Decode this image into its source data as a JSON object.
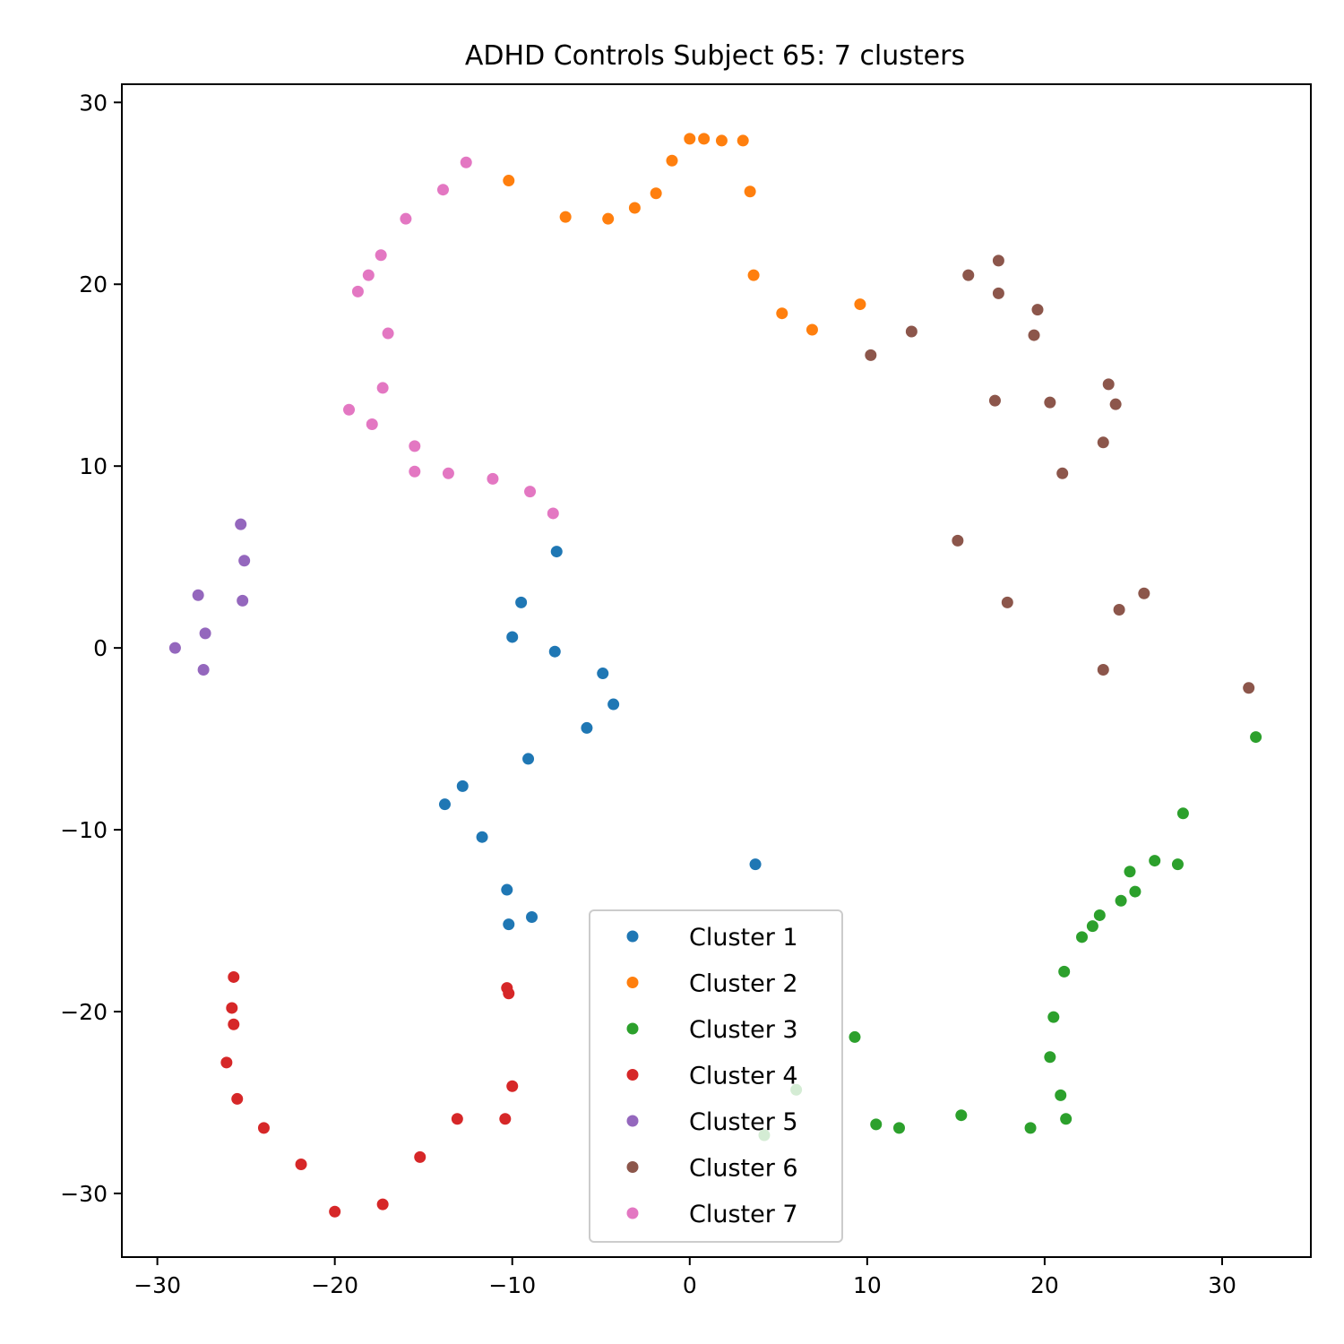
{
  "chart_data": {
    "type": "scatter",
    "title": "ADHD Controls Subject 65: 7 clusters",
    "xlabel": "",
    "ylabel": "",
    "xlim": [
      -32,
      35
    ],
    "ylim": [
      -33.5,
      31
    ],
    "xticks": [
      -30,
      -20,
      -10,
      0,
      10,
      20,
      30
    ],
    "yticks": [
      -30,
      -20,
      -10,
      0,
      10,
      20,
      30
    ],
    "xtick_labels": [
      "−30",
      "−20",
      "−10",
      "0",
      "10",
      "20",
      "30"
    ],
    "ytick_labels": [
      "−30",
      "−20",
      "−10",
      "0",
      "10",
      "20",
      "30"
    ],
    "grid": false,
    "legend_position": "lower center",
    "series": [
      {
        "name": "Cluster 1",
        "color": "#1f77b4",
        "points": [
          [
            -7.5,
            5.3
          ],
          [
            -9.5,
            2.5
          ],
          [
            -10,
            0.6
          ],
          [
            -7.6,
            -0.2
          ],
          [
            -4.9,
            -1.4
          ],
          [
            -4.3,
            -3.1
          ],
          [
            -5.8,
            -4.4
          ],
          [
            -9.1,
            -6.1
          ],
          [
            -12.8,
            -7.6
          ],
          [
            -13.8,
            -8.6
          ],
          [
            -11.7,
            -10.4
          ],
          [
            3.7,
            -11.9
          ],
          [
            -10.3,
            -13.3
          ],
          [
            -10.2,
            -15.2
          ],
          [
            -8.9,
            -14.8
          ]
        ]
      },
      {
        "name": "Cluster 2",
        "color": "#ff7f0e",
        "points": [
          [
            -10.2,
            25.7
          ],
          [
            -7,
            23.7
          ],
          [
            -4.6,
            23.6
          ],
          [
            -3.1,
            24.2
          ],
          [
            -1.9,
            25
          ],
          [
            -1,
            26.8
          ],
          [
            0,
            28
          ],
          [
            0.8,
            28
          ],
          [
            1.8,
            27.9
          ],
          [
            3,
            27.9
          ],
          [
            3.4,
            25.1
          ],
          [
            3.6,
            20.5
          ],
          [
            5.2,
            18.4
          ],
          [
            6.9,
            17.5
          ],
          [
            9.6,
            18.9
          ]
        ]
      },
      {
        "name": "Cluster 3",
        "color": "#2ca02c",
        "points": [
          [
            31.9,
            -4.9
          ],
          [
            27.8,
            -9.1
          ],
          [
            26.2,
            -11.7
          ],
          [
            27.5,
            -11.9
          ],
          [
            24.8,
            -12.3
          ],
          [
            25.1,
            -13.4
          ],
          [
            24.3,
            -13.9
          ],
          [
            23.1,
            -14.7
          ],
          [
            22.7,
            -15.3
          ],
          [
            22.1,
            -15.9
          ],
          [
            21.1,
            -17.8
          ],
          [
            20.5,
            -20.3
          ],
          [
            9.3,
            -21.4
          ],
          [
            20.3,
            -22.5
          ],
          [
            20.9,
            -24.6
          ],
          [
            21.2,
            -25.9
          ],
          [
            19.2,
            -26.4
          ],
          [
            15.3,
            -25.7
          ],
          [
            11.8,
            -26.4
          ],
          [
            10.5,
            -26.2
          ],
          [
            4.2,
            -26.8
          ],
          [
            6,
            -24.3
          ]
        ]
      },
      {
        "name": "Cluster 4",
        "color": "#d62728",
        "points": [
          [
            -25.7,
            -18.1
          ],
          [
            -25.8,
            -19.8
          ],
          [
            -25.7,
            -20.7
          ],
          [
            -26.1,
            -22.8
          ],
          [
            -25.5,
            -24.8
          ],
          [
            -24,
            -26.4
          ],
          [
            -21.9,
            -28.4
          ],
          [
            -20,
            -31
          ],
          [
            -17.3,
            -30.6
          ],
          [
            -15.2,
            -28
          ],
          [
            -13.1,
            -25.9
          ],
          [
            -10.4,
            -25.9
          ],
          [
            -10,
            -24.1
          ],
          [
            -10.2,
            -19
          ],
          [
            -10.3,
            -18.7
          ]
        ]
      },
      {
        "name": "Cluster 5",
        "color": "#9467bd",
        "points": [
          [
            -25.3,
            6.8
          ],
          [
            -25.1,
            4.8
          ],
          [
            -25.2,
            2.6
          ],
          [
            -27.7,
            2.9
          ],
          [
            -27.3,
            0.8
          ],
          [
            -29,
            0
          ],
          [
            -27.4,
            -1.2
          ]
        ]
      },
      {
        "name": "Cluster 6",
        "color": "#8c564b",
        "points": [
          [
            17.4,
            21.3
          ],
          [
            15.7,
            20.5
          ],
          [
            17.4,
            19.5
          ],
          [
            19.6,
            18.6
          ],
          [
            19.4,
            17.2
          ],
          [
            12.5,
            17.4
          ],
          [
            10.2,
            16.1
          ],
          [
            23.6,
            14.5
          ],
          [
            24,
            13.4
          ],
          [
            17.2,
            13.6
          ],
          [
            20.3,
            13.5
          ],
          [
            23.3,
            11.3
          ],
          [
            21,
            9.6
          ],
          [
            15.1,
            5.9
          ],
          [
            17.9,
            2.5
          ],
          [
            25.6,
            3
          ],
          [
            24.2,
            2.1
          ],
          [
            23.3,
            -1.2
          ],
          [
            31.5,
            -2.2
          ]
        ]
      },
      {
        "name": "Cluster 7",
        "color": "#e377c2",
        "points": [
          [
            -12.6,
            26.7
          ],
          [
            -13.9,
            25.2
          ],
          [
            -16,
            23.6
          ],
          [
            -17.4,
            21.6
          ],
          [
            -18.1,
            20.5
          ],
          [
            -18.7,
            19.6
          ],
          [
            -17,
            17.3
          ],
          [
            -17.3,
            14.3
          ],
          [
            -19.2,
            13.1
          ],
          [
            -17.9,
            12.3
          ],
          [
            -15.5,
            11.1
          ],
          [
            -15.5,
            9.7
          ],
          [
            -13.6,
            9.6
          ],
          [
            -11.1,
            9.3
          ],
          [
            -9,
            8.6
          ],
          [
            -7.7,
            7.4
          ]
        ]
      }
    ]
  }
}
